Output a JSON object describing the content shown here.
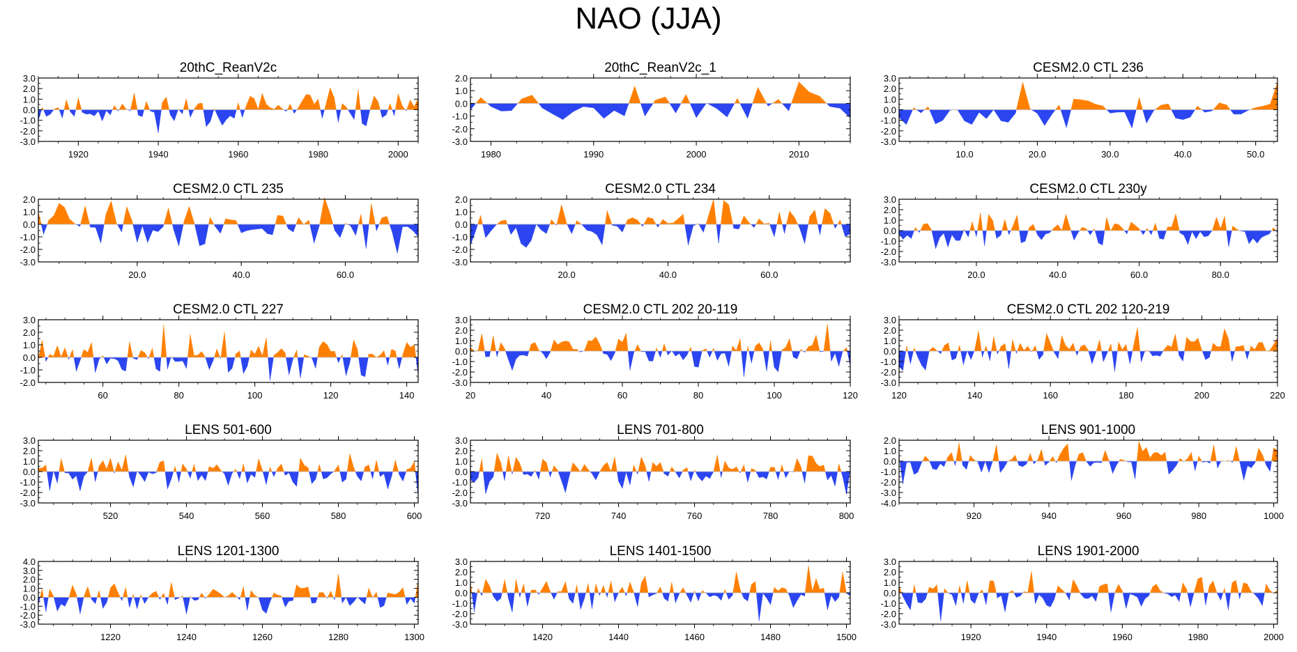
{
  "title": "NAO (JJA)",
  "colors": {
    "positive": "#ff8000",
    "negative": "#2b45f0",
    "axis": "#000000"
  },
  "chart_data": [
    {
      "type": "area",
      "title": "20thC_ReanV2c",
      "xlim": [
        1910,
        2005
      ],
      "ylim": [
        -3,
        3
      ],
      "yticks": [
        "3.0",
        "2.0",
        "1.0",
        "0.0",
        "-1.0",
        "-2.0",
        "-3.0"
      ],
      "xticks": [
        1920,
        1940,
        1960,
        1980,
        2000
      ],
      "xtick_labels": [
        "1920",
        "1940",
        "1960",
        "1980",
        "2000"
      ],
      "seed": 11
    },
    {
      "type": "area",
      "title": "20thC_ReanV2c_1",
      "xlim": [
        1978,
        2015
      ],
      "ylim": [
        -3,
        2
      ],
      "yticks": [
        "2.0",
        "1.0",
        "0.0",
        "-1.0",
        "-2.0",
        "-3.0"
      ],
      "xticks": [
        1980,
        1990,
        2000,
        2010
      ],
      "xtick_labels": [
        "1980",
        "1990",
        "2000",
        "2010"
      ],
      "seed": 23
    },
    {
      "type": "area",
      "title": "CESM2.0 CTL 236",
      "xlim": [
        1,
        53
      ],
      "ylim": [
        -3,
        3
      ],
      "yticks": [
        "3.0",
        "2.0",
        "1.0",
        "0.0",
        "-1.0",
        "-2.0",
        "-3.0"
      ],
      "xticks": [
        10,
        20,
        30,
        40,
        50
      ],
      "xtick_labels": [
        "10.0",
        "20.0",
        "30.0",
        "40.0",
        "50.0"
      ],
      "seed": 37
    },
    {
      "type": "area",
      "title": "CESM2.0 CTL 235",
      "xlim": [
        1,
        74
      ],
      "ylim": [
        -3,
        2
      ],
      "yticks": [
        "2.0",
        "1.0",
        "0.0",
        "-1.0",
        "-2.0",
        "-3.0"
      ],
      "xticks": [
        20,
        40,
        60
      ],
      "xtick_labels": [
        "20.0",
        "40.0",
        "60.0"
      ],
      "seed": 41
    },
    {
      "type": "area",
      "title": "CESM2.0 CTL 234",
      "xlim": [
        1,
        76
      ],
      "ylim": [
        -3,
        2
      ],
      "yticks": [
        "2.0",
        "1.0",
        "0.0",
        "-1.0",
        "-2.0",
        "-3.0"
      ],
      "xticks": [
        20,
        40,
        60
      ],
      "xtick_labels": [
        "20.0",
        "40.0",
        "60.0"
      ],
      "seed": 53
    },
    {
      "type": "area",
      "title": "CESM2.0 CTL 230y",
      "xlim": [
        1,
        94
      ],
      "ylim": [
        -3,
        3
      ],
      "yticks": [
        "3.0",
        "2.0",
        "1.0",
        "0.0",
        "-1.0",
        "-2.0",
        "-3.0"
      ],
      "xticks": [
        20,
        40,
        60,
        80
      ],
      "xtick_labels": [
        "20.0",
        "40.0",
        "60.0",
        "80.0"
      ],
      "seed": 67
    },
    {
      "type": "area",
      "title": "CESM2.0 CTL 227",
      "xlim": [
        43,
        143
      ],
      "ylim": [
        -2,
        3
      ],
      "yticks": [
        "3.0",
        "2.0",
        "1.0",
        "0.0",
        "-1.0",
        "-2.0"
      ],
      "xticks": [
        60,
        80,
        100,
        120,
        140
      ],
      "xtick_labels": [
        "60",
        "80",
        "100",
        "120",
        "140"
      ],
      "seed": 71
    },
    {
      "type": "area",
      "title": "CESM2.0 CTL 202 20-119",
      "xlim": [
        20,
        120
      ],
      "ylim": [
        -3,
        3
      ],
      "yticks": [
        "3.0",
        "2.0",
        "1.0",
        "0.0",
        "-1.0",
        "-2.0",
        "-3.0"
      ],
      "xticks": [
        20,
        40,
        60,
        80,
        100,
        120
      ],
      "xtick_labels": [
        "20",
        "40",
        "60",
        "80",
        "100",
        "120"
      ],
      "seed": 83
    },
    {
      "type": "area",
      "title": "CESM2.0 CTL 202 120-219",
      "xlim": [
        120,
        220
      ],
      "ylim": [
        -3,
        3
      ],
      "yticks": [
        "3.0",
        "2.0",
        "1.0",
        "0.0",
        "-1.0",
        "-2.0",
        "-3.0"
      ],
      "xticks": [
        120,
        140,
        160,
        180,
        200,
        220
      ],
      "xtick_labels": [
        "120",
        "140",
        "160",
        "180",
        "200",
        "220"
      ],
      "seed": 97
    },
    {
      "type": "area",
      "title": "LENS 501-600",
      "xlim": [
        501,
        601
      ],
      "ylim": [
        -3,
        3
      ],
      "yticks": [
        "3.0",
        "2.0",
        "1.0",
        "0.0",
        "-1.0",
        "-2.0",
        "-3.0"
      ],
      "xticks": [
        520,
        540,
        560,
        580,
        600
      ],
      "xtick_labels": [
        "520",
        "540",
        "560",
        "580",
        "600"
      ],
      "seed": 101
    },
    {
      "type": "area",
      "title": "LENS 701-800",
      "xlim": [
        701,
        801
      ],
      "ylim": [
        -3,
        3
      ],
      "yticks": [
        "3.0",
        "2.0",
        "1.0",
        "0.0",
        "-1.0",
        "-2.0",
        "-3.0"
      ],
      "xticks": [
        720,
        740,
        760,
        780,
        800
      ],
      "xtick_labels": [
        "720",
        "740",
        "760",
        "780",
        "800"
      ],
      "seed": 113
    },
    {
      "type": "area",
      "title": "LENS 901-1000",
      "xlim": [
        900,
        1001
      ],
      "ylim": [
        -4,
        2
      ],
      "yticks": [
        "2.0",
        "1.0",
        "0.0",
        "-1.0",
        "-2.0",
        "-3.0",
        "-4.0"
      ],
      "xticks": [
        920,
        940,
        960,
        980,
        1000
      ],
      "xtick_labels": [
        "920",
        "940",
        "960",
        "980",
        "1000"
      ],
      "seed": 127
    },
    {
      "type": "area",
      "title": "LENS 1201-1300",
      "xlim": [
        1201,
        1301
      ],
      "ylim": [
        -3,
        4
      ],
      "yticks": [
        "4.0",
        "3.0",
        "2.0",
        "1.0",
        "0.0",
        "-1.0",
        "-2.0",
        "-3.0"
      ],
      "xticks": [
        1220,
        1240,
        1260,
        1280,
        1300
      ],
      "xtick_labels": [
        "1220",
        "1240",
        "1260",
        "1280",
        "1300"
      ],
      "seed": 131
    },
    {
      "type": "area",
      "title": "LENS 1401-1500",
      "xlim": [
        1401,
        1501
      ],
      "ylim": [
        -3,
        3
      ],
      "yticks": [
        "3.0",
        "2.0",
        "1.0",
        "0.0",
        "-1.0",
        "-2.0",
        "-3.0"
      ],
      "xticks": [
        1420,
        1440,
        1460,
        1480,
        1500
      ],
      "xtick_labels": [
        "1420",
        "1440",
        "1460",
        "1480",
        "1500"
      ],
      "seed": 139
    },
    {
      "type": "area",
      "title": "LENS 1901-2000",
      "xlim": [
        1901,
        2001
      ],
      "ylim": [
        -3,
        3
      ],
      "yticks": [
        "3.0",
        "2.0",
        "1.0",
        "0.0",
        "-1.0",
        "-2.0",
        "-3.0"
      ],
      "xticks": [
        1920,
        1940,
        1960,
        1980,
        2000
      ],
      "xtick_labels": [
        "1920",
        "1940",
        "1960",
        "1980",
        "2000"
      ],
      "seed": 149
    }
  ]
}
